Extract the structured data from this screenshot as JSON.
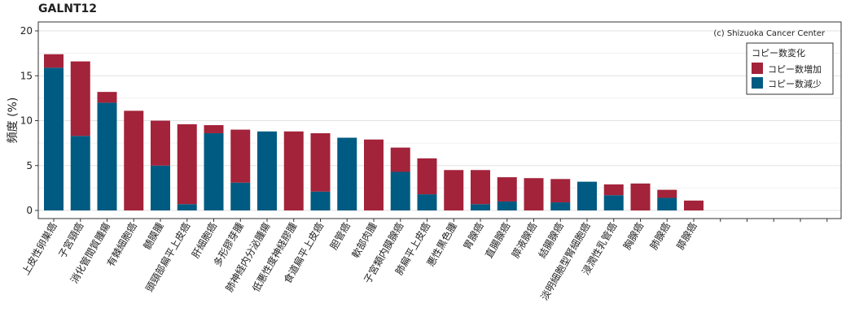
{
  "chart_data": {
    "type": "bar",
    "title": "GALNT12",
    "ylabel": "頻度 (%)",
    "xlabel": "",
    "ylim": [
      0,
      21
    ],
    "yticks": [
      0,
      5,
      10,
      15,
      20
    ],
    "grid": true,
    "stacked": true,
    "credit": "(c) Shizuoka Cancer Center",
    "legend": {
      "title": "コピー数変化",
      "placement": "top-right",
      "entries": [
        "コピー数増加",
        "コピー数減少"
      ]
    },
    "categories": [
      "上皮性卵巣癌",
      "子宮頸癌",
      "消化管間質腫瘍",
      "有棘細胞癌",
      "髄膜腫",
      "頭頸部扁平上皮癌",
      "肝細胞癌",
      "多形膠芽腫",
      "肺神経内分泌腫瘍",
      "低悪性度神経膠腫",
      "食道扁平上皮癌",
      "胆管癌",
      "軟部肉腫",
      "子宮類内膜腺癌",
      "肺扁平上皮癌",
      "悪性黒色腫",
      "胃腺癌",
      "直腸腺癌",
      "膵液腺癌",
      "結腸腺癌",
      "淡明細胞型腎細胞癌",
      "浸潤性乳管癌",
      "胸腺癌",
      "肺腺癌",
      "膵腺癌"
    ],
    "series": [
      {
        "name": "コピー数増加",
        "color": "#a3233a",
        "values": [
          1.5,
          8.3,
          1.2,
          11.1,
          5.0,
          8.9,
          0.9,
          5.9,
          0.0,
          8.8,
          6.5,
          0.0,
          7.9,
          2.7,
          4.0,
          4.5,
          3.8,
          2.7,
          3.6,
          2.6,
          0.0,
          1.2,
          3.0,
          0.9,
          1.1
        ]
      },
      {
        "name": "コピー数減少",
        "color": "#005b82",
        "values": [
          15.9,
          8.3,
          12.0,
          0.0,
          5.0,
          0.7,
          8.6,
          3.1,
          8.8,
          0.0,
          2.1,
          8.1,
          0.0,
          4.3,
          1.8,
          0.0,
          0.7,
          1.0,
          0.0,
          0.9,
          3.2,
          1.7,
          0.0,
          1.4,
          0.0
        ]
      }
    ]
  }
}
